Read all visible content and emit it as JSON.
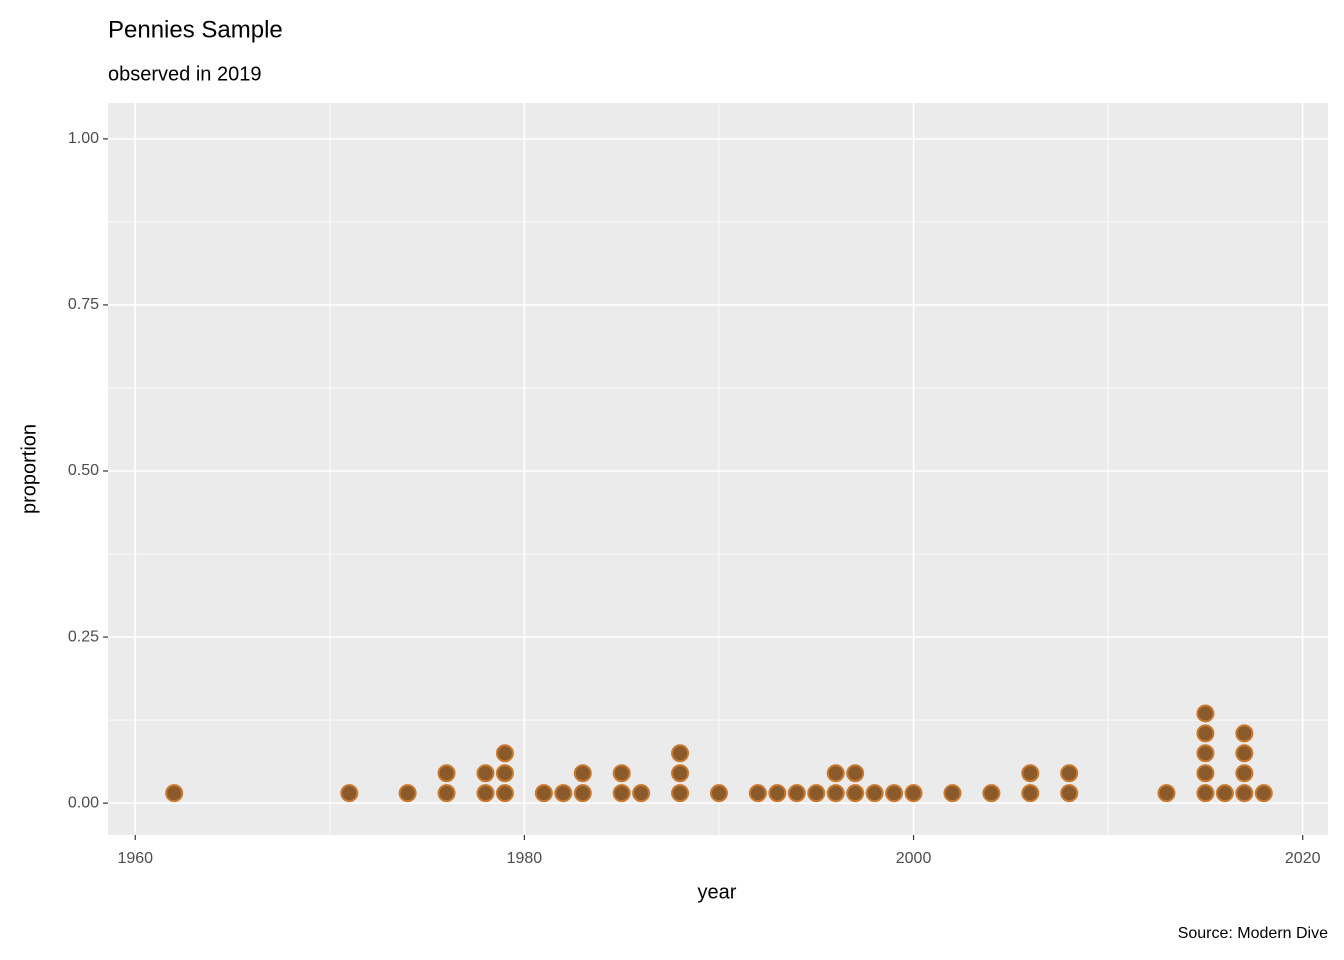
{
  "chart_data": {
    "type": "scatter",
    "title": "Pennies Sample",
    "subtitle": "observed in 2019",
    "x_label": "year",
    "y_label": "proportion",
    "caption": "Source: Modern Dive",
    "color": "#8b5a2b",
    "edge_color": "#c8782f",
    "grid": true,
    "x": [
      1962,
      1971,
      1974,
      1976,
      1976,
      1978,
      1978,
      1979,
      1979,
      1979,
      1981,
      1982,
      1983,
      1983,
      1985,
      1985,
      1986,
      1988,
      1988,
      1988,
      1990,
      1992,
      1993,
      1994,
      1995,
      1996,
      1996,
      1997,
      1997,
      1998,
      1999,
      2000,
      2002,
      2004,
      2006,
      2006,
      2008,
      2008,
      2013,
      2015,
      2015,
      2015,
      2015,
      2015,
      2016,
      2017,
      2017,
      2017,
      2017,
      2018
    ],
    "values": [
      0.015,
      0.015,
      0.015,
      0.015,
      0.045,
      0.015,
      0.045,
      0.015,
      0.045,
      0.075,
      0.015,
      0.015,
      0.015,
      0.045,
      0.015,
      0.045,
      0.015,
      0.015,
      0.045,
      0.075,
      0.015,
      0.015,
      0.015,
      0.015,
      0.015,
      0.015,
      0.045,
      0.015,
      0.045,
      0.015,
      0.015,
      0.015,
      0.015,
      0.015,
      0.015,
      0.045,
      0.015,
      0.045,
      0.015,
      0.015,
      0.045,
      0.075,
      0.105,
      0.135,
      0.015,
      0.015,
      0.045,
      0.075,
      0.105,
      0.015
    ],
    "xlim": [
      1958.6,
      2021.3
    ],
    "ylim": [
      -0.048,
      1.054
    ],
    "xticks": [
      1960,
      1980,
      2000,
      2020
    ],
    "yticks": [
      {
        "value": 0,
        "label": "0.00"
      },
      {
        "value": 0.25,
        "label": "0.25"
      },
      {
        "value": 0.5,
        "label": "0.50"
      },
      {
        "value": 0.75,
        "label": "0.75"
      },
      {
        "value": 1,
        "label": "1.00"
      }
    ]
  }
}
